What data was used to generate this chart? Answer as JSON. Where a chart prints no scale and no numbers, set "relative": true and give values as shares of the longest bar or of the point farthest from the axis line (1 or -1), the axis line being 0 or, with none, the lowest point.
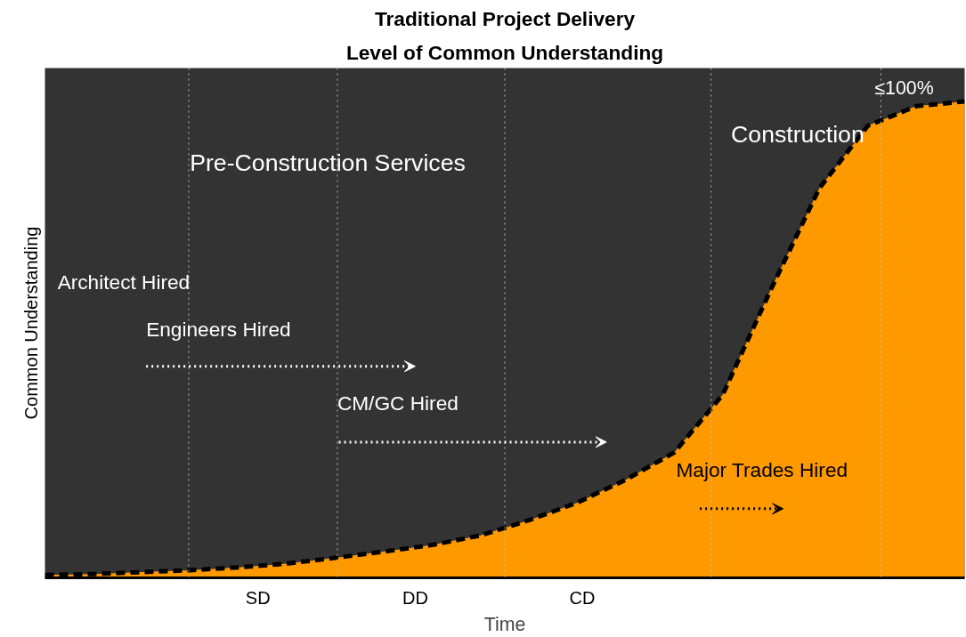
{
  "chart_data": {
    "type": "area",
    "title": "Traditional Project Delivery",
    "subtitle": "Level of Common Understanding",
    "xlabel": "Time",
    "ylabel": "Common Understanding",
    "relative": true,
    "categories": [
      null,
      null,
      null,
      null,
      null,
      null,
      null,
      null,
      null,
      null,
      null,
      null,
      null,
      null,
      null,
      null,
      null,
      null,
      null,
      null
    ],
    "series": [
      {
        "color": "#ff9900",
        "line_style": "dashed",
        "values": [
          0.006,
          0.008,
          0.012,
          0.016,
          0.022,
          0.03,
          0.042,
          0.055,
          0.069,
          0.089,
          0.121,
          0.158,
          0.206,
          0.263,
          0.384,
          0.606,
          0.818,
          0.949,
          0.99,
          1
        ]
      }
    ],
    "annotations": [
      "Pre-Construction Services",
      "Construction",
      "≤100%",
      "Architect Hired",
      "Engineers Hired",
      "CM/GC Hired",
      "Major Trades Hired",
      "SD",
      "DD",
      "CD"
    ],
    "grid": false
  }
}
